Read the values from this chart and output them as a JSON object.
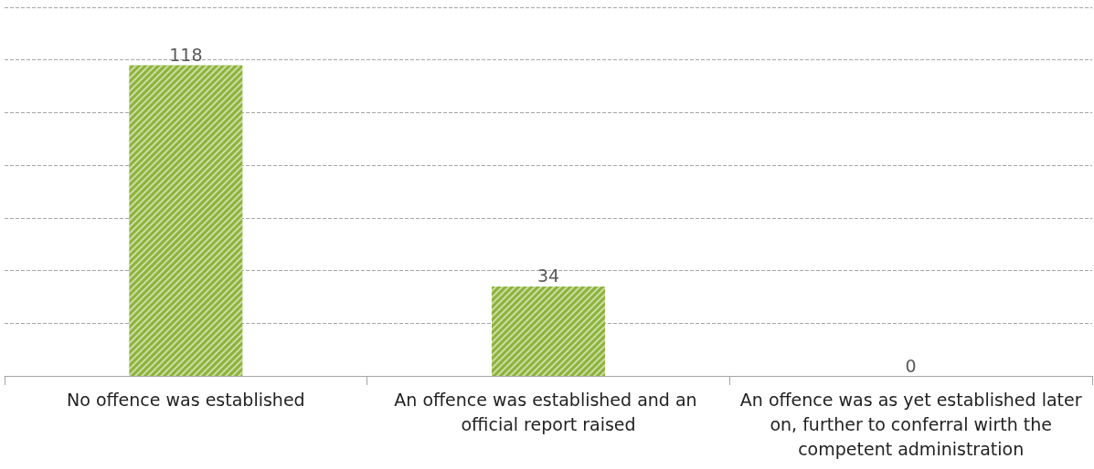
{
  "chart_data": {
    "type": "bar",
    "categories": [
      "No offence was established",
      "An offence was established and an official report raised",
      "An offence was as yet established later on, further to conferral wirth the competent administration"
    ],
    "values": [
      118,
      34,
      0
    ],
    "color": "#8db33a",
    "ylim": [
      0,
      140
    ],
    "yticks": [
      {
        "value": 0,
        "label": null
      },
      {
        "value": 20,
        "label": null
      },
      {
        "value": 40,
        "label": null
      },
      {
        "value": 60,
        "label": null
      },
      {
        "value": 80,
        "label": null
      },
      {
        "value": 100,
        "label": null
      },
      {
        "value": 120,
        "label": null
      },
      {
        "value": 140,
        "label": null
      }
    ],
    "grid": "y",
    "tick_labels": "x",
    "data_labels": true
  }
}
